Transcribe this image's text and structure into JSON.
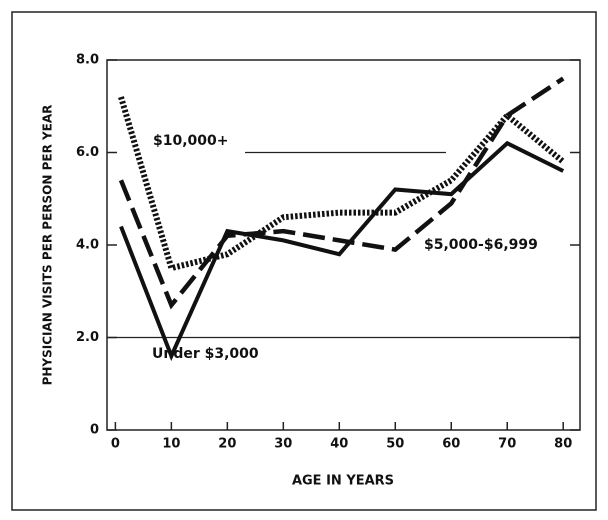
{
  "chart_data": {
    "type": "line",
    "xlabel": "AGE IN YEARS",
    "ylabel": "PHYSICIAN VISITS PER PERSON PER YEAR",
    "x": [
      1,
      10,
      20,
      30,
      40,
      50,
      60,
      70,
      80
    ],
    "series": [
      {
        "name": "Under $3,000",
        "color": "#111111",
        "linestyle": "solid",
        "values": [
          4.4,
          1.6,
          4.3,
          4.1,
          3.8,
          5.2,
          5.1,
          6.2,
          5.6
        ]
      },
      {
        "name": "$5,000-$6,999",
        "color": "#111111",
        "linestyle": "dashed",
        "values": [
          5.4,
          2.7,
          4.2,
          4.3,
          4.1,
          3.9,
          4.9,
          6.8,
          7.6
        ]
      },
      {
        "name": "$10,000+",
        "color": "#111111",
        "linestyle": "dotted",
        "values": [
          7.2,
          3.5,
          3.8,
          4.6,
          4.7,
          4.7,
          5.4,
          6.8,
          5.8
        ]
      }
    ],
    "xlim": [
      -1.5,
      83
    ],
    "xticks": [
      0,
      10,
      20,
      30,
      40,
      50,
      60,
      70,
      80
    ],
    "ylim": [
      0,
      8
    ],
    "yticks": [
      0,
      {
        "value": 2,
        "label": "2.0"
      },
      {
        "value": 4,
        "label": "4.0"
      },
      {
        "value": 6,
        "label": "6.0"
      },
      {
        "value": 8,
        "label": "8.0"
      }
    ]
  }
}
